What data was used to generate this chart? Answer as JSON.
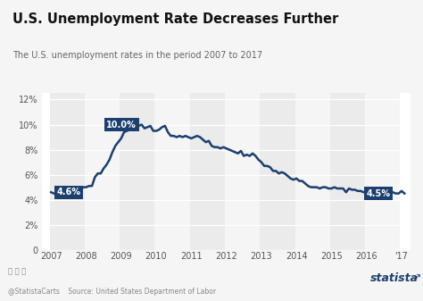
{
  "title": "U.S. Unemployment Rate Decreases Further",
  "subtitle": "The U.S. unemployment rates in the period 2007 to 2017",
  "source": "Source: United States Department of Labor",
  "source_prefix": "@StatistaCarts",
  "bg_color": "#f5f5f5",
  "plot_bg_color": "#ffffff",
  "band_colors": [
    "#ebebeb",
    "#f5f5f5"
  ],
  "line_color": "#1b3f6e",
  "line_width": 1.8,
  "annotation_box_color": "#1b3f6e",
  "annotation_text_color": "#ffffff",
  "ylim": [
    0,
    12.5
  ],
  "yticks": [
    0,
    2,
    4,
    6,
    8,
    10,
    12
  ],
  "x_labels": [
    "2007",
    "2008",
    "2009",
    "2010",
    "2011",
    "2012",
    "2013",
    "2014",
    "2015",
    "2016",
    "'17"
  ],
  "data": [
    4.6,
    4.5,
    4.4,
    4.5,
    4.4,
    4.5,
    4.7,
    4.7,
    4.6,
    4.7,
    4.8,
    5.0,
    5.0,
    5.1,
    5.1,
    5.8,
    6.1,
    6.1,
    6.5,
    6.8,
    7.2,
    7.8,
    8.3,
    8.6,
    8.9,
    9.4,
    9.5,
    9.6,
    9.8,
    10.0,
    9.9,
    10.0,
    9.7,
    9.8,
    9.9,
    9.5,
    9.5,
    9.6,
    9.8,
    9.9,
    9.4,
    9.1,
    9.1,
    9.0,
    9.1,
    9.0,
    9.1,
    9.0,
    8.9,
    9.0,
    9.1,
    9.0,
    8.8,
    8.6,
    8.7,
    8.3,
    8.2,
    8.2,
    8.1,
    8.2,
    8.1,
    8.0,
    7.9,
    7.8,
    7.7,
    7.9,
    7.5,
    7.6,
    7.5,
    7.7,
    7.5,
    7.2,
    7.0,
    6.7,
    6.7,
    6.6,
    6.3,
    6.3,
    6.1,
    6.2,
    6.1,
    5.9,
    5.7,
    5.6,
    5.7,
    5.5,
    5.5,
    5.3,
    5.1,
    5.0,
    5.0,
    5.0,
    4.9,
    5.0,
    5.0,
    4.9,
    4.9,
    5.0,
    4.9,
    4.9,
    4.9,
    4.6,
    4.9,
    4.8,
    4.8,
    4.7,
    4.7,
    4.6,
    4.6,
    4.5,
    4.7,
    4.6,
    4.5,
    4.7,
    4.9,
    4.8,
    4.7,
    4.6,
    4.5,
    4.5,
    4.7,
    4.5
  ]
}
